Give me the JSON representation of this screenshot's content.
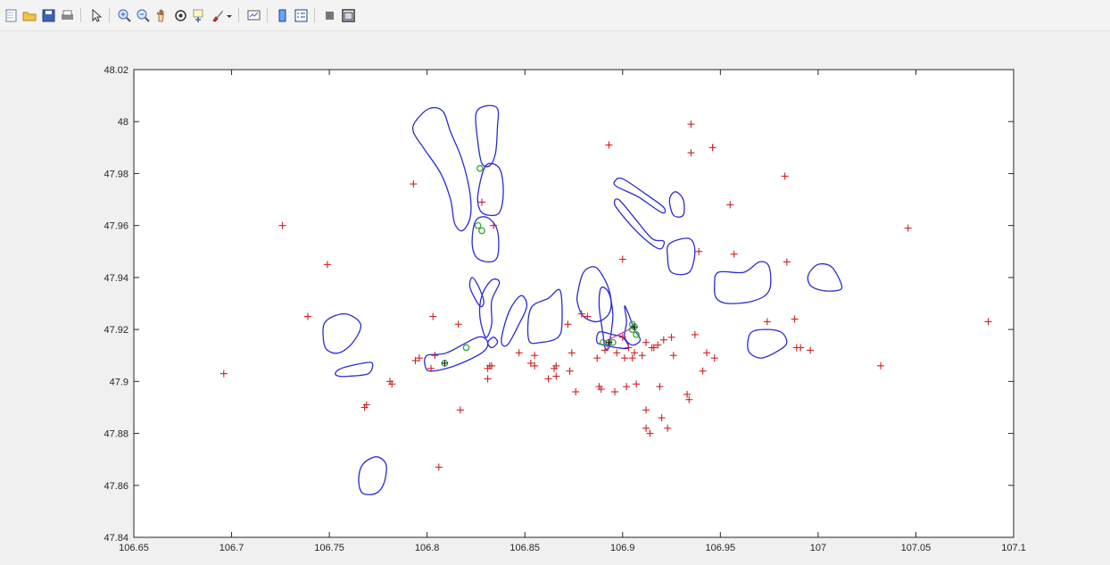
{
  "toolbar": {
    "buttons": [
      {
        "icon": "new-figure-icon",
        "group": 0
      },
      {
        "icon": "open-file-icon",
        "group": 0
      },
      {
        "icon": "save-figure-icon",
        "group": 0
      },
      {
        "icon": "print-figure-icon",
        "group": 0
      },
      {
        "icon": "edit-plot-arrow-icon",
        "group": 1
      },
      {
        "icon": "zoom-in-icon",
        "group": 2
      },
      {
        "icon": "zoom-out-icon",
        "group": 2
      },
      {
        "icon": "pan-hand-icon",
        "group": 2
      },
      {
        "icon": "rotate-3d-icon",
        "group": 2
      },
      {
        "icon": "data-cursor-icon",
        "group": 2
      },
      {
        "icon": "brush-icon",
        "group": 2
      },
      {
        "icon": "brush-dropdown-icon",
        "group": 2
      },
      {
        "icon": "link-plot-icon",
        "group": 3
      },
      {
        "icon": "insert-colorbar-icon",
        "group": 4
      },
      {
        "icon": "insert-legend-icon",
        "group": 4
      },
      {
        "icon": "hide-plot-tools-icon",
        "group": 5
      },
      {
        "icon": "show-plot-tools-icon",
        "group": 5
      }
    ]
  },
  "colors": {
    "contour": "#2b2bd0",
    "marker_red": "#d01f1f",
    "marker_green": "#3aa53a",
    "marker_line": "#c23cc2"
  },
  "chart_data": {
    "type": "scatter",
    "xlim": [
      106.65,
      107.1
    ],
    "ylim": [
      47.84,
      48.02
    ],
    "xticks": [
      "106.65",
      "106.7",
      "106.75",
      "106.8",
      "106.85",
      "106.9",
      "106.95",
      "107",
      "107.05",
      "107.1"
    ],
    "yticks": [
      "47.84",
      "47.86",
      "47.88",
      "47.9",
      "47.92",
      "47.94",
      "47.96",
      "47.98",
      "48",
      "48.02"
    ],
    "grid": false,
    "red_plus_points": [
      [
        106.696,
        47.903
      ],
      [
        106.726,
        47.96
      ],
      [
        106.749,
        47.945
      ],
      [
        106.739,
        47.925
      ],
      [
        106.768,
        47.89
      ],
      [
        106.769,
        47.891
      ],
      [
        106.781,
        47.9
      ],
      [
        106.782,
        47.899
      ],
      [
        106.793,
        47.976
      ],
      [
        106.794,
        47.908
      ],
      [
        106.796,
        47.909
      ],
      [
        106.802,
        47.905
      ],
      [
        106.803,
        47.925
      ],
      [
        106.804,
        47.91
      ],
      [
        106.806,
        47.867
      ],
      [
        106.816,
        47.922
      ],
      [
        106.817,
        47.889
      ],
      [
        106.828,
        47.969
      ],
      [
        106.834,
        47.96
      ],
      [
        106.831,
        47.905
      ],
      [
        106.832,
        47.906
      ],
      [
        106.833,
        47.906
      ],
      [
        106.831,
        47.901
      ],
      [
        106.847,
        47.911
      ],
      [
        106.853,
        47.907
      ],
      [
        106.855,
        47.906
      ],
      [
        106.855,
        47.91
      ],
      [
        106.862,
        47.901
      ],
      [
        106.865,
        47.905
      ],
      [
        106.866,
        47.902
      ],
      [
        106.866,
        47.906
      ],
      [
        106.872,
        47.922
      ],
      [
        106.873,
        47.904
      ],
      [
        106.874,
        47.911
      ],
      [
        106.876,
        47.896
      ],
      [
        106.879,
        47.926
      ],
      [
        106.882,
        47.925
      ],
      [
        106.887,
        47.909
      ],
      [
        106.888,
        47.898
      ],
      [
        106.889,
        47.897
      ],
      [
        106.891,
        47.912
      ],
      [
        106.893,
        47.991
      ],
      [
        106.896,
        47.896
      ],
      [
        106.897,
        47.911
      ],
      [
        106.9,
        47.917
      ],
      [
        106.9,
        47.947
      ],
      [
        106.901,
        47.909
      ],
      [
        106.902,
        47.898
      ],
      [
        106.903,
        47.913
      ],
      [
        106.905,
        47.909
      ],
      [
        106.906,
        47.911
      ],
      [
        106.907,
        47.899
      ],
      [
        106.91,
        47.91
      ],
      [
        106.912,
        47.915
      ],
      [
        106.912,
        47.889
      ],
      [
        106.912,
        47.882
      ],
      [
        106.914,
        47.88
      ],
      [
        106.915,
        47.913
      ],
      [
        106.916,
        47.913
      ],
      [
        106.918,
        47.914
      ],
      [
        106.919,
        47.898
      ],
      [
        106.92,
        47.886
      ],
      [
        106.921,
        47.916
      ],
      [
        106.923,
        47.882
      ],
      [
        106.925,
        47.917
      ],
      [
        106.926,
        47.91
      ],
      [
        106.933,
        47.895
      ],
      [
        106.934,
        47.893
      ],
      [
        106.935,
        47.999
      ],
      [
        106.935,
        47.988
      ],
      [
        106.937,
        47.918
      ],
      [
        106.939,
        47.95
      ],
      [
        106.941,
        47.904
      ],
      [
        106.943,
        47.911
      ],
      [
        106.946,
        47.99
      ],
      [
        106.947,
        47.909
      ],
      [
        106.955,
        47.968
      ],
      [
        106.957,
        47.949
      ],
      [
        106.974,
        47.923
      ],
      [
        106.983,
        47.979
      ],
      [
        106.984,
        47.946
      ],
      [
        106.988,
        47.924
      ],
      [
        106.989,
        47.913
      ],
      [
        106.991,
        47.913
      ],
      [
        106.996,
        47.912
      ],
      [
        107.032,
        47.906
      ],
      [
        107.046,
        47.959
      ],
      [
        107.087,
        47.923
      ]
    ],
    "green_points": [
      [
        106.809,
        47.907
      ],
      [
        106.82,
        47.913
      ],
      [
        106.827,
        47.982
      ],
      [
        106.826,
        47.96
      ],
      [
        106.828,
        47.958
      ],
      [
        106.89,
        47.915
      ],
      [
        106.893,
        47.915
      ],
      [
        106.895,
        47.915
      ],
      [
        106.905,
        47.922
      ],
      [
        106.905,
        47.92
      ],
      [
        106.906,
        47.921
      ],
      [
        106.907,
        47.918
      ]
    ],
    "dark_plus_points": [
      [
        106.809,
        47.907
      ],
      [
        106.893,
        47.915
      ],
      [
        106.906,
        47.921
      ]
    ],
    "magenta_segments": [
      [
        [
          106.89,
          47.915
        ],
        [
          106.906,
          47.921
        ]
      ],
      [
        [
          106.892,
          47.913
        ],
        [
          106.894,
          47.918
        ]
      ]
    ],
    "contours": [
      [
        [
          106.794,
          48.0
        ],
        [
          106.801,
          48.005
        ],
        [
          106.808,
          48.004
        ],
        [
          106.812,
          47.996
        ],
        [
          106.818,
          47.985
        ],
        [
          106.822,
          47.972
        ],
        [
          106.822,
          47.963
        ],
        [
          106.818,
          47.958
        ],
        [
          106.814,
          47.961
        ],
        [
          106.812,
          47.97
        ],
        [
          106.807,
          47.98
        ],
        [
          106.798,
          47.99
        ],
        [
          106.793,
          47.996
        ]
      ],
      [
        [
          106.825,
          48.003
        ],
        [
          106.83,
          48.006
        ],
        [
          106.836,
          48.005
        ],
        [
          106.836,
          47.998
        ],
        [
          106.835,
          47.988
        ],
        [
          106.832,
          47.983
        ],
        [
          106.828,
          47.984
        ],
        [
          106.826,
          47.992
        ]
      ],
      [
        [
          106.826,
          47.972
        ],
        [
          106.83,
          47.983
        ],
        [
          106.837,
          47.982
        ],
        [
          106.839,
          47.973
        ],
        [
          106.837,
          47.965
        ],
        [
          106.831,
          47.964
        ],
        [
          106.827,
          47.966
        ]
      ],
      [
        [
          106.823,
          47.954
        ],
        [
          106.825,
          47.962
        ],
        [
          106.831,
          47.963
        ],
        [
          106.836,
          47.958
        ],
        [
          106.836,
          47.948
        ],
        [
          106.831,
          47.946
        ],
        [
          106.825,
          47.948
        ]
      ],
      [
        [
          106.822,
          47.936
        ],
        [
          106.823,
          47.94
        ],
        [
          106.826,
          47.937
        ],
        [
          106.829,
          47.931
        ],
        [
          106.827,
          47.929
        ]
      ],
      [
        [
          106.827,
          47.925
        ],
        [
          106.828,
          47.933
        ],
        [
          106.833,
          47.939
        ],
        [
          106.837,
          47.938
        ],
        [
          106.833,
          47.931
        ],
        [
          106.833,
          47.922
        ],
        [
          106.83,
          47.917
        ]
      ],
      [
        [
          106.831,
          47.915
        ],
        [
          106.834,
          47.917
        ],
        [
          106.836,
          47.915
        ],
        [
          106.833,
          47.913
        ]
      ],
      [
        [
          106.838,
          47.916
        ],
        [
          106.842,
          47.927
        ],
        [
          106.848,
          47.933
        ],
        [
          106.851,
          47.929
        ],
        [
          106.847,
          47.922
        ],
        [
          106.841,
          47.914
        ]
      ],
      [
        [
          106.852,
          47.916
        ],
        [
          106.853,
          47.928
        ],
        [
          106.862,
          47.932
        ],
        [
          106.868,
          47.935
        ],
        [
          106.869,
          47.923
        ],
        [
          106.867,
          47.917
        ],
        [
          106.858,
          47.915
        ]
      ],
      [
        [
          106.877,
          47.934
        ],
        [
          106.88,
          47.942
        ],
        [
          106.886,
          47.944
        ],
        [
          106.891,
          47.939
        ],
        [
          106.894,
          47.932
        ],
        [
          106.893,
          47.926
        ],
        [
          106.887,
          47.923
        ],
        [
          106.88,
          47.925
        ],
        [
          106.877,
          47.93
        ]
      ],
      [
        [
          106.887,
          47.915
        ],
        [
          106.888,
          47.919
        ],
        [
          106.895,
          47.918
        ],
        [
          106.9,
          47.917
        ],
        [
          106.903,
          47.913
        ],
        [
          106.897,
          47.913
        ],
        [
          106.891,
          47.914
        ]
      ],
      [
        [
          106.888,
          47.929
        ],
        [
          106.889,
          47.936
        ],
        [
          106.893,
          47.934
        ],
        [
          106.895,
          47.926
        ],
        [
          106.894,
          47.918
        ],
        [
          106.893,
          47.913
        ],
        [
          106.891,
          47.913
        ],
        [
          106.89,
          47.918
        ]
      ],
      [
        [
          106.901,
          47.929
        ],
        [
          106.903,
          47.926
        ],
        [
          106.906,
          47.92
        ],
        [
          106.909,
          47.916
        ],
        [
          106.905,
          47.914
        ],
        [
          106.901,
          47.917
        ],
        [
          106.902,
          47.923
        ]
      ],
      [
        [
          106.799,
          47.906
        ],
        [
          106.8,
          47.91
        ],
        [
          106.81,
          47.911
        ],
        [
          106.826,
          47.917
        ],
        [
          106.831,
          47.915
        ],
        [
          106.828,
          47.911
        ],
        [
          106.814,
          47.906
        ],
        [
          106.802,
          47.904
        ]
      ],
      [
        [
          106.747,
          47.916
        ],
        [
          106.748,
          47.923
        ],
        [
          106.758,
          47.926
        ],
        [
          106.766,
          47.922
        ],
        [
          106.762,
          47.915
        ],
        [
          106.755,
          47.911
        ],
        [
          106.749,
          47.912
        ]
      ],
      [
        [
          106.753,
          47.903
        ],
        [
          106.756,
          47.905
        ],
        [
          106.767,
          47.907
        ],
        [
          106.772,
          47.907
        ],
        [
          106.77,
          47.903
        ],
        [
          106.76,
          47.902
        ],
        [
          106.755,
          47.902
        ]
      ],
      [
        [
          106.765,
          47.862
        ],
        [
          106.767,
          47.868
        ],
        [
          106.774,
          47.871
        ],
        [
          106.779,
          47.868
        ],
        [
          106.778,
          47.861
        ],
        [
          106.774,
          47.857
        ],
        [
          106.767,
          47.857
        ]
      ],
      [
        [
          106.896,
          47.977
        ],
        [
          106.9,
          47.978
        ],
        [
          106.912,
          47.972
        ],
        [
          106.921,
          47.967
        ],
        [
          106.92,
          47.965
        ],
        [
          106.908,
          47.971
        ],
        [
          106.897,
          47.975
        ]
      ],
      [
        [
          106.896,
          47.968
        ],
        [
          106.898,
          47.97
        ],
        [
          106.906,
          47.963
        ],
        [
          106.915,
          47.955
        ],
        [
          106.921,
          47.954
        ],
        [
          106.919,
          47.951
        ],
        [
          106.911,
          47.955
        ],
        [
          106.902,
          47.962
        ]
      ],
      [
        [
          106.924,
          47.97
        ],
        [
          106.927,
          47.973
        ],
        [
          106.931,
          47.97
        ],
        [
          106.931,
          47.964
        ],
        [
          106.926,
          47.964
        ]
      ],
      [
        [
          106.923,
          47.948
        ],
        [
          106.924,
          47.953
        ],
        [
          106.934,
          47.955
        ],
        [
          106.937,
          47.95
        ],
        [
          106.934,
          47.942
        ],
        [
          106.925,
          47.942
        ]
      ],
      [
        [
          106.947,
          47.937
        ],
        [
          106.949,
          47.942
        ],
        [
          106.962,
          47.942
        ],
        [
          106.97,
          47.946
        ],
        [
          106.975,
          47.944
        ],
        [
          106.975,
          47.935
        ],
        [
          106.967,
          47.931
        ],
        [
          106.954,
          47.93
        ],
        [
          106.948,
          47.932
        ]
      ],
      [
        [
          106.964,
          47.915
        ],
        [
          106.966,
          47.919
        ],
        [
          106.973,
          47.92
        ],
        [
          106.981,
          47.919
        ],
        [
          106.984,
          47.915
        ],
        [
          106.98,
          47.912
        ],
        [
          106.971,
          47.909
        ],
        [
          106.965,
          47.911
        ]
      ],
      [
        [
          106.995,
          47.941
        ],
        [
          107.0,
          47.945
        ],
        [
          107.007,
          47.944
        ],
        [
          107.012,
          47.937
        ],
        [
          107.01,
          47.935
        ],
        [
          107.002,
          47.935
        ],
        [
          106.996,
          47.937
        ]
      ]
    ]
  }
}
